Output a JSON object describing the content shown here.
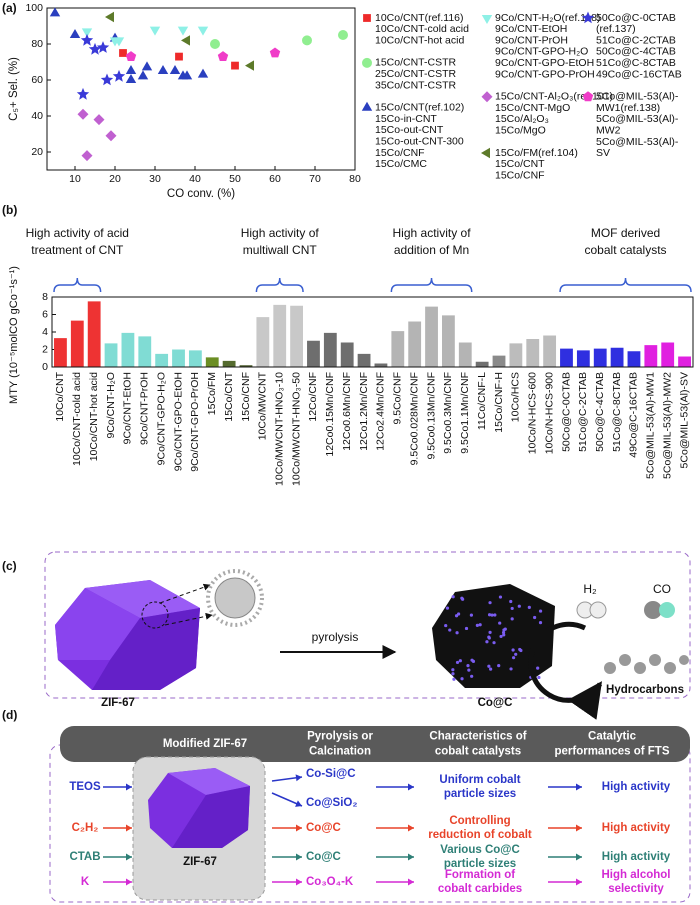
{
  "panel_labels": [
    "(a)",
    "(b)",
    "(c)",
    "(d)"
  ],
  "chart_data": [
    {
      "type": "scatter",
      "xlabel": "CO conv. (%)",
      "ylabel": "C₅+ Sel. (%)",
      "xlim": [
        3,
        80
      ],
      "ylim": [
        10,
        100
      ],
      "xticks": [
        10,
        20,
        30,
        40,
        50,
        60,
        70,
        80
      ],
      "yticks": [
        20,
        40,
        60,
        80,
        100
      ],
      "series": [
        {
          "name": "10Co/CNT(ref.116)",
          "entries": [
            "10Co/CNT-cold acid",
            "10Co/CNT-hot acid"
          ],
          "color": "#ee2a2a",
          "marker": "square",
          "x": [
            22,
            36,
            50
          ],
          "y": [
            75,
            73,
            68
          ]
        },
        {
          "name": "15Co/CNT-CSTR",
          "entries": [
            "25Co/CNT-CSTR",
            "35Co/CNT-CSTR"
          ],
          "color": "#90ee90",
          "marker": "circle",
          "x": [
            45,
            68,
            77
          ],
          "y": [
            80,
            82,
            85
          ]
        },
        {
          "name": "15Co/CNT(ref.102)",
          "entries": [
            "15Co-in-CNT",
            "15Co-out-CNT",
            "15Co-out-CNT-300",
            "15Co/CNF",
            "15Co/CMC"
          ],
          "color": "#2a3fbf",
          "marker": "triangle-up",
          "x": [
            5,
            10,
            20,
            24,
            24,
            27,
            28,
            32,
            35,
            37,
            38,
            42
          ],
          "y": [
            97,
            85,
            83,
            60,
            65,
            62,
            67,
            65,
            65,
            62,
            62,
            63
          ]
        },
        {
          "name": "9Co/CNT-H₂O(ref.118)",
          "entries": [
            "9Co/CNT-EtOH",
            "9Co/CNT-PrOH",
            "9Co/CNT-GPO-H₂O",
            "9Co/CNT-GPO-EtOH",
            "9Co/CNT-GPO-PrOH"
          ],
          "color": "#8ef0e6",
          "marker": "triangle-down",
          "x": [
            13,
            20,
            21,
            30,
            37,
            42
          ],
          "y": [
            87,
            82,
            82,
            88,
            88,
            88
          ]
        },
        {
          "name": "15Co/CNT-Al₂O₃(ref.101)",
          "entries": [
            "15Co/CNT-MgO",
            "15Co/Al₂O₃",
            "15Co/MgO"
          ],
          "color": "#c060d0",
          "marker": "diamond",
          "x": [
            12,
            13,
            16,
            19
          ],
          "y": [
            41,
            18,
            38,
            29
          ]
        },
        {
          "name": "15Co/FM(ref.104)",
          "entries": [
            "15Co/CNT",
            "15Co/CNF"
          ],
          "color": "#5d7a2a",
          "marker": "triangle-left",
          "x": [
            19,
            38,
            54
          ],
          "y": [
            95,
            82,
            68
          ]
        },
        {
          "name": "50Co@C-0CTAB",
          "entries": [
            "(ref.137)",
            "51Co@C-2CTAB",
            "50Co@C-4CTAB",
            "51Co@C-8CTAB",
            "49Co@C-16CTAB"
          ],
          "color": "#3a3ad8",
          "marker": "star",
          "x": [
            13,
            15,
            17,
            12,
            18,
            21
          ],
          "y": [
            82,
            77,
            78,
            52,
            60,
            62
          ]
        },
        {
          "name": "5Co@MIL-53(Al)-",
          "entries": [
            "MW1(ref.138)",
            "5Co@MIL-53(Al)-",
            "MW2",
            "5Co@MIL-53(Al)-",
            "SV"
          ],
          "color": "#f03cc8",
          "marker": "pentagon",
          "x": [
            24,
            47,
            60
          ],
          "y": [
            73,
            73,
            75
          ]
        }
      ]
    },
    {
      "type": "bar",
      "ylabel": "MTY (10⁻⁵molCO gCo⁻¹s⁻¹)",
      "ylim": [
        0,
        8
      ],
      "yticks": [
        0,
        2,
        4,
        6,
        8
      ],
      "annotations": [
        [
          "High activity of acid",
          "treatment of CNT"
        ],
        [
          "High activity of",
          "multiwall CNT"
        ],
        [
          "High activity of",
          "addition of Mn"
        ],
        [
          "MOF derived",
          "cobalt catalysts"
        ]
      ],
      "categories": [
        "10Co/CNT",
        "10Co/CNT-cold acid",
        "10Co/CNT-hot acid",
        "9Co/CNT-H₂O",
        "9Co/CNT-EtOH",
        "9Co/CNT-PrOH",
        "9Co/CNT-GPO-H₂O",
        "9Co/CNT-GPO-EtOH",
        "9Co/CNT-GPO-PrOH",
        "15Co/FM",
        "15Co/CNT",
        "15Co/CNF",
        "10Co/MWCNT",
        "10Co/MWCNT-HNO₃-10",
        "10Co/MWCNT-HNO₃-50",
        "12Co/CNF",
        "12Co0.15Mn/CNF",
        "12Co0.6Mn/CNF",
        "12Co1.2Mn/CNF",
        "12Co2.4Mn/CNF",
        "9.5Co/CNF",
        "9.5Co0.028Mn/CNF",
        "9.5Co0.13Mn/CNF",
        "9.5Co0.3Mn/CNF",
        "9.5Co1.1Mn/CNF",
        "11Co/CNF-L",
        "15Co/CNF-H",
        "10Co/HCS",
        "10Co/N-HCS-600",
        "10Co/N-HCS-900",
        "50Co@C-0CTAB",
        "51Co@C-2CTAB",
        "50Co@C-4CTAB",
        "51Co@C-8CTAB",
        "49Co@C-16CTAB",
        "5Co@MIL-53(Al)-MW1",
        "5Co@MIL-53(Al)-MW2",
        "5Co@MIL-53(Al)-SV"
      ],
      "values": [
        3.3,
        5.3,
        7.5,
        2.7,
        3.9,
        3.5,
        1.5,
        2.0,
        1.9,
        1.1,
        0.7,
        0.2,
        5.7,
        7.1,
        7.0,
        3.0,
        3.9,
        2.8,
        1.5,
        0.4,
        4.1,
        5.2,
        6.9,
        5.9,
        2.8,
        0.6,
        1.3,
        2.7,
        3.2,
        3.6,
        2.1,
        1.9,
        2.1,
        2.2,
        1.8,
        2.5,
        2.8,
        1.2
      ],
      "colors": [
        "#ee3333",
        "#ee3333",
        "#ee3333",
        "#80dcd4",
        "#80dcd4",
        "#80dcd4",
        "#80dcd4",
        "#80dcd4",
        "#80dcd4",
        "#6b8e23",
        "#556b2f",
        "#4a5a2a",
        "#c8c8c8",
        "#c8c8c8",
        "#c8c8c8",
        "#6e6e6e",
        "#6e6e6e",
        "#6e6e6e",
        "#6e6e6e",
        "#6e6e6e",
        "#b4b4b4",
        "#b4b4b4",
        "#b4b4b4",
        "#b4b4b4",
        "#b4b4b4",
        "#707070",
        "#8a8a8a",
        "#bcbcbc",
        "#bcbcbc",
        "#bcbcbc",
        "#2f2fe0",
        "#2f2fe0",
        "#2f2fe0",
        "#2f2fe0",
        "#2f2fe0",
        "#e020e0",
        "#e020e0",
        "#e020e0"
      ]
    }
  ],
  "panel_c": {
    "zif": "ZIF-67",
    "step": "pyrolysis",
    "product": "Co@C",
    "h2": "H₂",
    "co": "CO",
    "hydrocarbons": "Hydrocarbons"
  },
  "panel_d": {
    "headers": [
      [
        "Modified  ZIF-67"
      ],
      [
        "Pyrolysis or",
        "Calcination"
      ],
      [
        "Characteristics of",
        "cobalt catalysts"
      ],
      [
        "Catalytic",
        "performances of FTS"
      ]
    ],
    "zif": "ZIF-67",
    "rows": [
      {
        "reagent": "TEOS",
        "products": [
          "Co-Si@C",
          "Co@SiO₂"
        ],
        "characteristics": [
          "Uniform cobalt",
          "particle sizes"
        ],
        "performance": [
          "High activity"
        ]
      },
      {
        "reagent": "C₂H₂",
        "products": [
          "Co@C"
        ],
        "characteristics": [
          "Controlling",
          "reduction of cobalt"
        ],
        "performance": [
          "High activity"
        ]
      },
      {
        "reagent": "CTAB",
        "products": [
          "Co@C"
        ],
        "characteristics": [
          "Various Co@C",
          "particle sizes"
        ],
        "performance": [
          "High activity"
        ]
      },
      {
        "reagent": "K",
        "products": [
          "Co₃O₄-K"
        ],
        "characteristics": [
          "Formation of",
          "cobalt carbides"
        ],
        "performance": [
          "High alcohol",
          "selectivity"
        ]
      }
    ]
  }
}
